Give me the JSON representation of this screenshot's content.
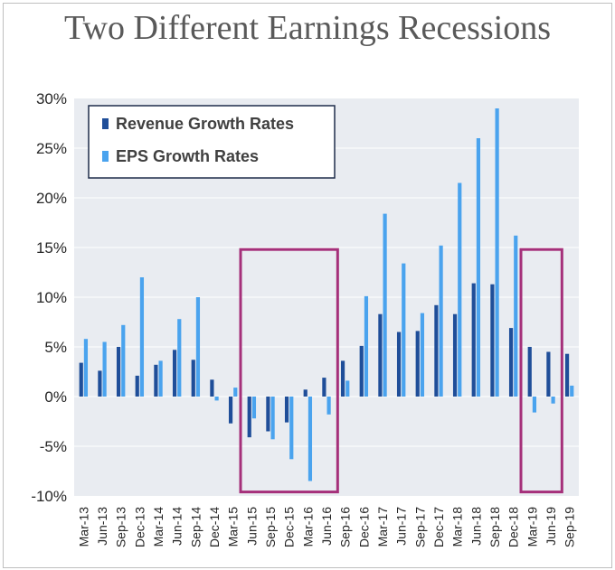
{
  "colors": {
    "revenue": "#1f4e99",
    "eps": "#4aa3ee",
    "plot_bg": "#e9ecf1",
    "grid": "#ffffff",
    "highlight": "#a5307a"
  },
  "chart_data": {
    "type": "bar",
    "title": "Two Different Earnings Recessions",
    "categories": [
      "Mar-13",
      "Jun-13",
      "Sep-13",
      "Dec-13",
      "Mar-14",
      "Jun-14",
      "Sep-14",
      "Dec-14",
      "Mar-15",
      "Jun-15",
      "Sep-15",
      "Dec-15",
      "Mar-16",
      "Jun-16",
      "Sep-16",
      "Dec-16",
      "Mar-17",
      "Jun-17",
      "Sep-17",
      "Dec-17",
      "Mar-18",
      "Jun-18",
      "Sep-18",
      "Dec-18",
      "Mar-19",
      "Jun-19",
      "Sep-19"
    ],
    "series": [
      {
        "name": "Revenue Growth Rates",
        "values": [
          3.4,
          2.6,
          5.0,
          2.1,
          3.2,
          4.7,
          3.7,
          1.7,
          -2.7,
          -4.1,
          -3.5,
          -2.6,
          0.7,
          1.9,
          3.6,
          5.1,
          8.3,
          6.5,
          6.6,
          9.2,
          8.3,
          11.4,
          11.3,
          6.9,
          5.0,
          4.5,
          4.3
        ]
      },
      {
        "name": "EPS Growth Rates",
        "values": [
          5.8,
          5.5,
          7.2,
          12.0,
          3.6,
          7.8,
          10.0,
          -0.4,
          0.9,
          -2.2,
          -4.3,
          -6.3,
          -8.5,
          -1.8,
          1.6,
          10.1,
          18.4,
          13.4,
          8.4,
          15.2,
          21.5,
          26.0,
          29.0,
          16.2,
          -1.6,
          -0.7,
          1.1
        ]
      }
    ],
    "yticks": [
      "30%",
      "25%",
      "20%",
      "15%",
      "10%",
      "5%",
      "0%",
      "-5%",
      "-10%"
    ],
    "ylim": [
      -10,
      30
    ],
    "grid": true,
    "legend": "top-left",
    "highlights": [
      {
        "from": "Jun-15",
        "to": "Jun-16"
      },
      {
        "from": "Mar-19",
        "to": "Jun-19"
      }
    ]
  }
}
